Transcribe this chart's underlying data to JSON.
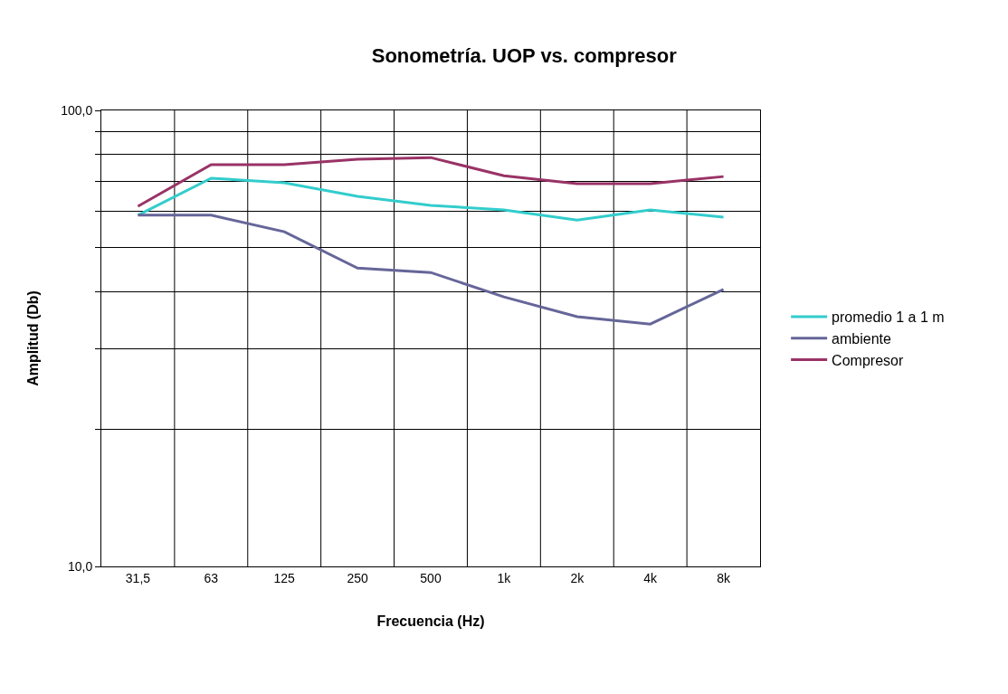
{
  "chart_data": {
    "type": "line",
    "title": "Sonometría. UOP vs. compresor",
    "xlabel": "Frecuencia (Hz)",
    "ylabel": "Amplitud (Db)",
    "categories": [
      "31,5",
      "63",
      "125",
      "250",
      "500",
      "1k",
      "2k",
      "4k",
      "8k"
    ],
    "series": [
      {
        "name": "promedio 1 a 1 m",
        "color": "#33cccc",
        "values": [
          58.9,
          71.0,
          69.4,
          64.8,
          61.9,
          60.5,
          57.5,
          60.5,
          58.3
        ]
      },
      {
        "name": "ambiente",
        "color": "#666699",
        "values": [
          58.9,
          58.9,
          54.2,
          45.1,
          44.1,
          39.0,
          35.3,
          34.0,
          40.5
        ]
      },
      {
        "name": "Compresor",
        "color": "#993366",
        "values": [
          61.6,
          76.0,
          76.0,
          78.1,
          78.8,
          71.9,
          69.1,
          69.1,
          71.6
        ]
      }
    ],
    "log": "y",
    "ylim": [
      10,
      100
    ],
    "yticks": [
      {
        "value": 10,
        "label": "10,0"
      },
      {
        "value": 20,
        "label": null
      },
      {
        "value": 30,
        "label": null
      },
      {
        "value": 40,
        "label": null
      },
      {
        "value": 50,
        "label": null
      },
      {
        "value": 60,
        "label": null
      },
      {
        "value": 70,
        "label": null
      },
      {
        "value": 80,
        "label": null
      },
      {
        "value": 90,
        "label": null
      },
      {
        "value": 100,
        "label": "100,0"
      }
    ],
    "grid": true,
    "legend": "right",
    "marker": "none",
    "line_style": "solid"
  }
}
